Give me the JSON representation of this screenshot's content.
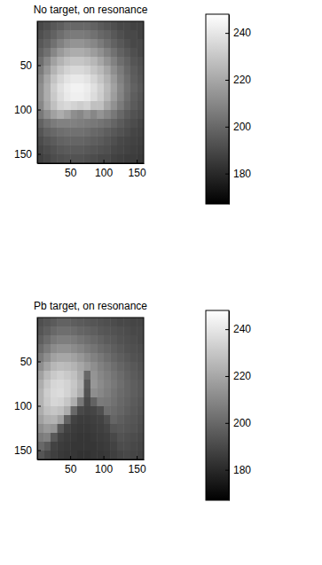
{
  "chart_data": [
    {
      "type": "heatmap",
      "title": "No target, on resonance",
      "x_edges": [
        0.5,
        10.5,
        20.5,
        30.5,
        40.5,
        50.5,
        60.5,
        70.5,
        80.5,
        90.5,
        100.5,
        110.5,
        120.5,
        130.5,
        140.5,
        150.5,
        160.5
      ],
      "y_edges": [
        0.5,
        10.5,
        20.5,
        30.5,
        40.5,
        50.5,
        60.5,
        70.5,
        80.5,
        90.5,
        100.5,
        110.5,
        120.5,
        130.5,
        140.5,
        150.5,
        160.5
      ],
      "xlim": [
        0.5,
        160.5
      ],
      "ylim": [
        0.5,
        160.5
      ],
      "xticks": [
        50,
        100,
        150
      ],
      "yticks": [
        50,
        100,
        150
      ],
      "color": "gray",
      "colorbar": {
        "range": [
          167,
          248
        ],
        "ticks": [
          180,
          200,
          220,
          240
        ]
      },
      "cells": [
        [
          190,
          192,
          195,
          197,
          200,
          200,
          200,
          200,
          198,
          196,
          194,
          192,
          190,
          190,
          188,
          188
        ],
        [
          192,
          195,
          198,
          202,
          205,
          206,
          206,
          205,
          203,
          200,
          198,
          195,
          192,
          190,
          190,
          188
        ],
        [
          195,
          198,
          203,
          208,
          212,
          214,
          214,
          212,
          210,
          206,
          202,
          198,
          195,
          192,
          190,
          190
        ],
        [
          198,
          203,
          210,
          216,
          220,
          222,
          222,
          220,
          217,
          213,
          208,
          203,
          198,
          195,
          192,
          190
        ],
        [
          202,
          210,
          218,
          224,
          228,
          230,
          230,
          228,
          225,
          220,
          214,
          208,
          202,
          198,
          194,
          192
        ],
        [
          206,
          215,
          224,
          230,
          234,
          236,
          236,
          234,
          230,
          226,
          220,
          212,
          206,
          200,
          196,
          193
        ],
        [
          210,
          220,
          229,
          235,
          239,
          241,
          241,
          239,
          235,
          230,
          224,
          216,
          208,
          202,
          197,
          194
        ],
        [
          212,
          222,
          232,
          238,
          242,
          244,
          244,
          242,
          238,
          233,
          226,
          218,
          210,
          203,
          198,
          195
        ],
        [
          212,
          222,
          231,
          237,
          241,
          243,
          243,
          241,
          237,
          232,
          225,
          217,
          209,
          202,
          197,
          194
        ],
        [
          210,
          220,
          228,
          234,
          236,
          234,
          232,
          234,
          228,
          228,
          220,
          213,
          206,
          200,
          196,
          193
        ],
        [
          205,
          212,
          218,
          222,
          218,
          212,
          210,
          214,
          210,
          214,
          210,
          205,
          200,
          196,
          193,
          191
        ],
        [
          198,
          203,
          206,
          208,
          208,
          208,
          207,
          206,
          205,
          204,
          202,
          199,
          196,
          193,
          191,
          189
        ],
        [
          194,
          198,
          200,
          202,
          203,
          203,
          203,
          202,
          200,
          199,
          197,
          195,
          193,
          191,
          189,
          188
        ],
        [
          191,
          194,
          196,
          198,
          199,
          199,
          199,
          198,
          197,
          196,
          194,
          192,
          190,
          189,
          188,
          187
        ],
        [
          189,
          191,
          193,
          195,
          196,
          196,
          196,
          195,
          194,
          193,
          192,
          190,
          189,
          188,
          187,
          186
        ],
        [
          187,
          189,
          191,
          192,
          193,
          193,
          193,
          192,
          191,
          190,
          190,
          188,
          187,
          186,
          186,
          185
        ]
      ]
    },
    {
      "type": "heatmap",
      "title": "Pb target, on resonance",
      "x_edges": [
        0.5,
        10.5,
        20.5,
        30.5,
        40.5,
        50.5,
        60.5,
        70.5,
        80.5,
        90.5,
        100.5,
        110.5,
        120.5,
        130.5,
        140.5,
        150.5,
        160.5
      ],
      "y_edges": [
        0.5,
        10.5,
        20.5,
        30.5,
        40.5,
        50.5,
        60.5,
        70.5,
        80.5,
        90.5,
        100.5,
        110.5,
        120.5,
        130.5,
        140.5,
        150.5,
        160.5
      ],
      "xlim": [
        0.5,
        160.5
      ],
      "ylim": [
        0.5,
        160.5
      ],
      "xticks": [
        50,
        100,
        150
      ],
      "yticks": [
        50,
        100,
        150
      ],
      "color": "gray",
      "colorbar": {
        "range": [
          167,
          248
        ],
        "ticks": [
          180,
          200,
          220,
          240
        ]
      },
      "cells": [
        [
          192,
          194,
          196,
          198,
          198,
          197,
          196,
          195,
          194,
          193,
          192,
          191,
          190,
          190,
          189,
          189
        ],
        [
          194,
          197,
          200,
          202,
          202,
          201,
          199,
          198,
          197,
          195,
          194,
          193,
          192,
          191,
          190,
          190
        ],
        [
          197,
          201,
          205,
          207,
          207,
          206,
          204,
          202,
          200,
          198,
          196,
          195,
          193,
          192,
          191,
          190
        ],
        [
          201,
          206,
          211,
          213,
          213,
          211,
          209,
          206,
          204,
          201,
          199,
          197,
          195,
          193,
          192,
          191
        ],
        [
          206,
          212,
          218,
          220,
          220,
          218,
          215,
          211,
          208,
          205,
          202,
          199,
          197,
          195,
          193,
          192
        ],
        [
          212,
          219,
          225,
          227,
          226,
          224,
          220,
          216,
          212,
          208,
          205,
          202,
          199,
          197,
          195,
          193
        ],
        [
          218,
          226,
          231,
          233,
          231,
          228,
          222,
          200,
          214,
          210,
          207,
          204,
          201,
          198,
          196,
          194
        ],
        [
          222,
          230,
          235,
          236,
          234,
          230,
          224,
          195,
          215,
          211,
          208,
          205,
          202,
          199,
          197,
          195
        ],
        [
          224,
          232,
          236,
          237,
          234,
          229,
          222,
          193,
          212,
          210,
          207,
          204,
          201,
          199,
          197,
          195
        ],
        [
          224,
          231,
          235,
          234,
          230,
          222,
          205,
          190,
          198,
          206,
          205,
          203,
          200,
          198,
          196,
          194
        ],
        [
          222,
          228,
          230,
          228,
          222,
          200,
          190,
          188,
          189,
          192,
          202,
          201,
          199,
          197,
          195,
          193
        ],
        [
          218,
          223,
          224,
          218,
          198,
          188,
          186,
          186,
          187,
          188,
          192,
          199,
          197,
          195,
          194,
          192
        ],
        [
          212,
          216,
          214,
          195,
          188,
          186,
          185,
          185,
          186,
          187,
          189,
          194,
          195,
          194,
          193,
          191
        ],
        [
          206,
          208,
          195,
          188,
          186,
          185,
          184,
          184,
          185,
          186,
          187,
          190,
          193,
          192,
          191,
          190
        ],
        [
          200,
          196,
          188,
          186,
          185,
          184,
          184,
          184,
          184,
          185,
          186,
          188,
          191,
          191,
          190,
          189
        ],
        [
          194,
          190,
          187,
          185,
          184,
          184,
          183,
          183,
          184,
          184,
          185,
          187,
          189,
          190,
          189,
          188
        ]
      ]
    }
  ]
}
